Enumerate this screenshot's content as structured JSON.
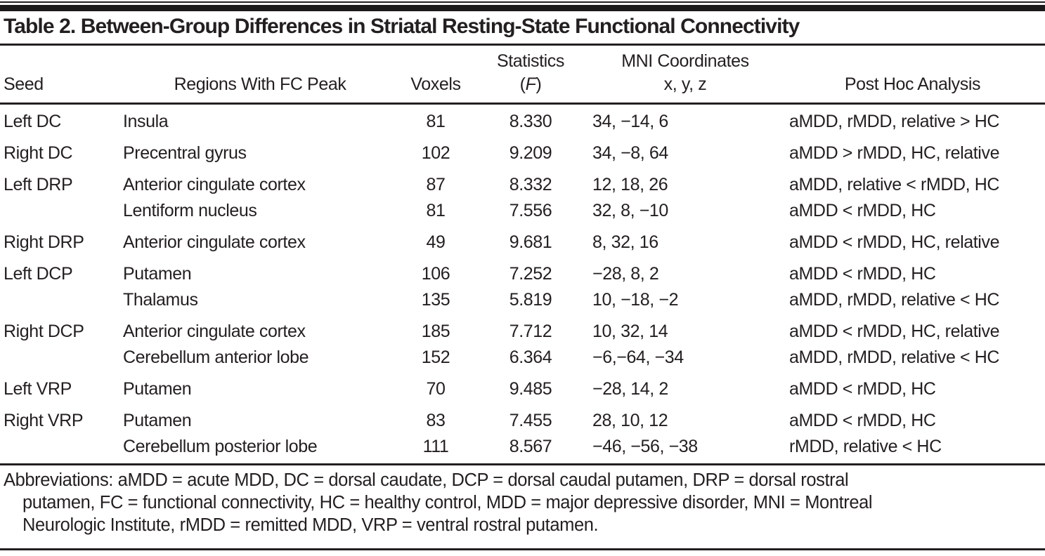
{
  "title": "Table 2. Between-Group Differences in Striatal Resting-State Functional Connectivity",
  "table": {
    "header": {
      "seed": "Seed",
      "regions": "Regions With FC Peak",
      "voxels": "Voxels",
      "statistics_top": "Statistics",
      "statistics_f_open": "(",
      "statistics_f": "F",
      "statistics_f_close": ")",
      "mni_top": "MNI Coordinates",
      "mni_sub": "x, y, z",
      "post_hoc": "Post Hoc Analysis"
    },
    "groups": [
      {
        "seed": "Left DC",
        "rows": [
          {
            "region": "Insula",
            "voxels": "81",
            "f": "8.330",
            "mni": "34, −14, 6",
            "post_hoc": "aMDD, rMDD, relative > HC"
          }
        ]
      },
      {
        "seed": "Right DC",
        "rows": [
          {
            "region": "Precentral gyrus",
            "voxels": "102",
            "f": "9.209",
            "mni": "34, −8, 64",
            "post_hoc": "aMDD > rMDD, HC, relative"
          }
        ]
      },
      {
        "seed": "Left DRP",
        "rows": [
          {
            "region": "Anterior cingulate cortex",
            "voxels": "87",
            "f": "8.332",
            "mni": "12, 18, 26",
            "post_hoc": "aMDD, relative < rMDD, HC"
          },
          {
            "region": "Lentiform nucleus",
            "voxels": "81",
            "f": "7.556",
            "mni": "32, 8, −10",
            "post_hoc": "aMDD < rMDD, HC"
          }
        ]
      },
      {
        "seed": "Right DRP",
        "rows": [
          {
            "region": "Anterior cingulate cortex",
            "voxels": "49",
            "f": "9.681",
            "mni": "8, 32, 16",
            "post_hoc": "aMDD < rMDD, HC, relative"
          }
        ]
      },
      {
        "seed": "Left DCP",
        "rows": [
          {
            "region": "Putamen",
            "voxels": "106",
            "f": "7.252",
            "mni": "−28, 8, 2",
            "post_hoc": "aMDD < rMDD, HC"
          },
          {
            "region": "Thalamus",
            "voxels": "135",
            "f": "5.819",
            "mni": "10, −18, −2",
            "post_hoc": "aMDD, rMDD, relative < HC"
          }
        ]
      },
      {
        "seed": "Right DCP",
        "rows": [
          {
            "region": "Anterior cingulate cortex",
            "voxels": "185",
            "f": "7.712",
            "mni": "10, 32, 14",
            "post_hoc": "aMDD < rMDD, HC, relative"
          },
          {
            "region": "Cerebellum anterior lobe",
            "voxels": "152",
            "f": "6.364",
            "mni": "−6,−64, −34",
            "post_hoc": "aMDD, rMDD, relative < HC"
          }
        ]
      },
      {
        "seed": "Left VRP",
        "rows": [
          {
            "region": "Putamen",
            "voxels": "70",
            "f": "9.485",
            "mni": "−28, 14, 2",
            "post_hoc": "aMDD < rMDD, HC"
          }
        ]
      },
      {
        "seed": "Right VRP",
        "rows": [
          {
            "region": "Putamen",
            "voxels": "83",
            "f": "7.455",
            "mni": "28, 10, 12",
            "post_hoc": "aMDD < rMDD, HC"
          },
          {
            "region": "Cerebellum posterior lobe",
            "voxels": "111",
            "f": "8.567",
            "mni": "−46, −56, −38",
            "post_hoc": "rMDD, relative < HC"
          }
        ]
      }
    ]
  },
  "footnote": {
    "lines": [
      "Abbreviations: aMDD = acute MDD, DC = dorsal caudate, DCP = dorsal caudal putamen, DRP = dorsal rostral",
      "putamen, FC = functional connectivity, HC = healthy control, MDD = major depressive disorder, MNI = Montreal",
      "Neurologic Institute, rMDD = remitted MDD, VRP = ventral rostral putamen."
    ]
  },
  "colors": {
    "text": "#231f20",
    "rule": "#231f20",
    "background": "#ffffff"
  }
}
